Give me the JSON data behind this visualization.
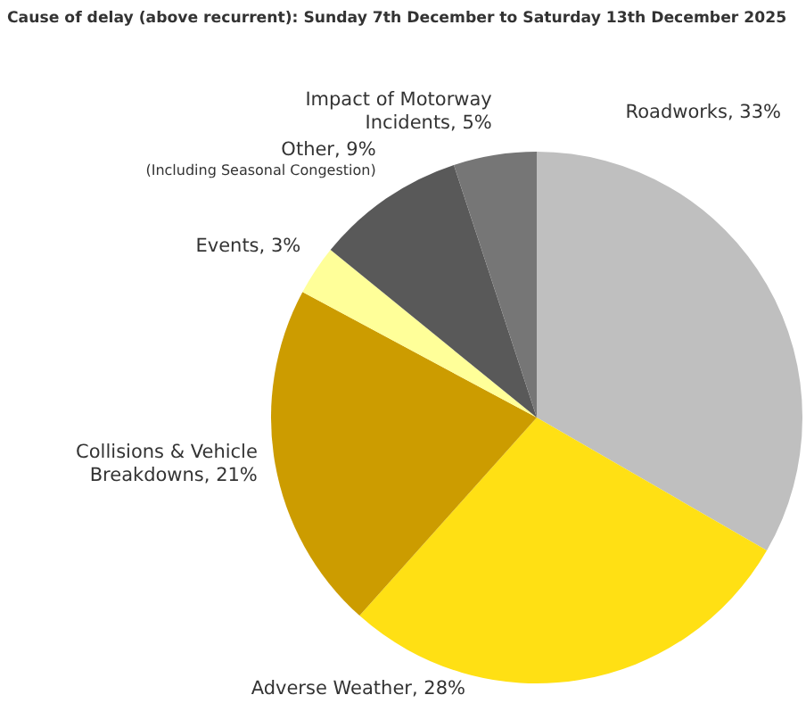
{
  "chart_data": {
    "type": "pie",
    "title": "Cause of delay (above recurrent): Sunday 7th December to Saturday 13th December 2025",
    "categories": [
      "Roadworks",
      "Adverse Weather",
      "Collisions & Vehicle Breakdowns",
      "Events",
      "Other",
      "Impact of Motorway Incidents"
    ],
    "values": [
      33,
      28,
      21,
      3,
      9,
      5
    ],
    "value_labels": [
      "33%",
      "28%",
      "21%",
      "3%",
      "9%",
      "5%"
    ],
    "colors": [
      "#bfbfbf",
      "#ffe014",
      "#cc9c00",
      "#ffff99",
      "#595959",
      "#767676"
    ],
    "annotations": [
      {
        "text": "(Including Seasonal Congestion)",
        "x": "Other"
      }
    ],
    "legend": false
  }
}
